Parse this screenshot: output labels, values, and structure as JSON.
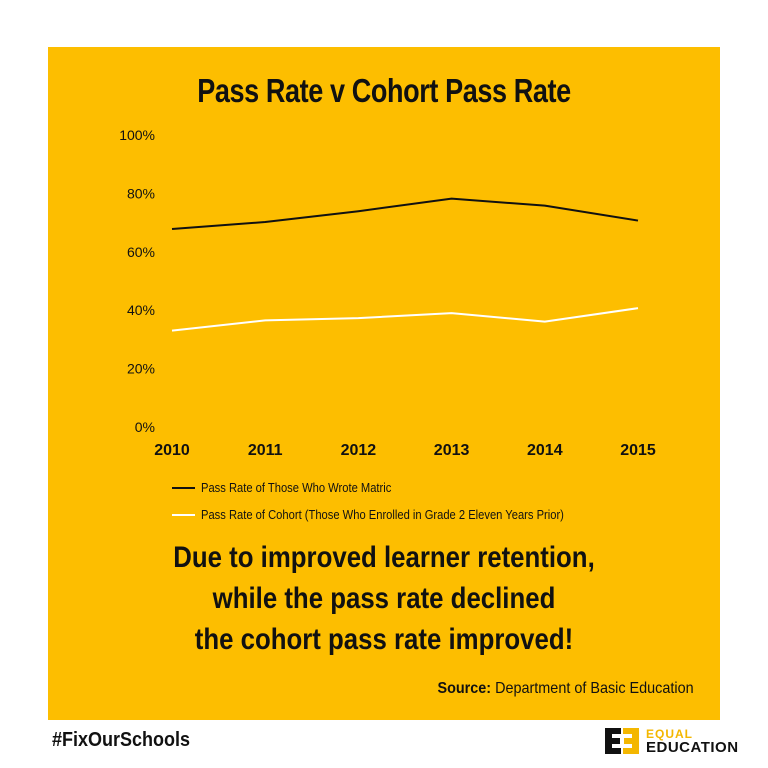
{
  "chart_data": {
    "type": "line",
    "title": "Pass Rate v Cohort Pass Rate",
    "categories": [
      "2010",
      "2011",
      "2012",
      "2013",
      "2014",
      "2015"
    ],
    "ylim": [
      0,
      100
    ],
    "yticks": [
      0,
      20,
      40,
      60,
      80,
      100
    ],
    "ytick_labels": [
      "0%",
      "20%",
      "40%",
      "60%",
      "80%",
      "100%"
    ],
    "grid": false,
    "legend_position": "bottom-left",
    "series": [
      {
        "name": "Pass Rate of Those Who Wrote Matric",
        "color": "#111111",
        "values": [
          67.8,
          70.2,
          73.9,
          78.2,
          75.8,
          70.7
        ]
      },
      {
        "name": "Pass Rate of Cohort (Those Who Enrolled in Grade 2 Eleven Years Prior)",
        "color": "#FFFFFF",
        "values": [
          33.0,
          36.5,
          37.3,
          39.0,
          36.1,
          40.7
        ]
      }
    ]
  },
  "message": {
    "line1": "Due to improved learner retention,",
    "line2": "while the pass rate declined",
    "line3": "the cohort pass rate improved!"
  },
  "source": {
    "label": "Source:",
    "text": "Department of Basic Education"
  },
  "hashtag": "#FixOurSchools",
  "logo": {
    "line1": "EQUAL",
    "line2": "EDUCATION",
    "accent_color": "#F4B700"
  },
  "colors": {
    "background": "#FDBE00",
    "text": "#111111"
  }
}
